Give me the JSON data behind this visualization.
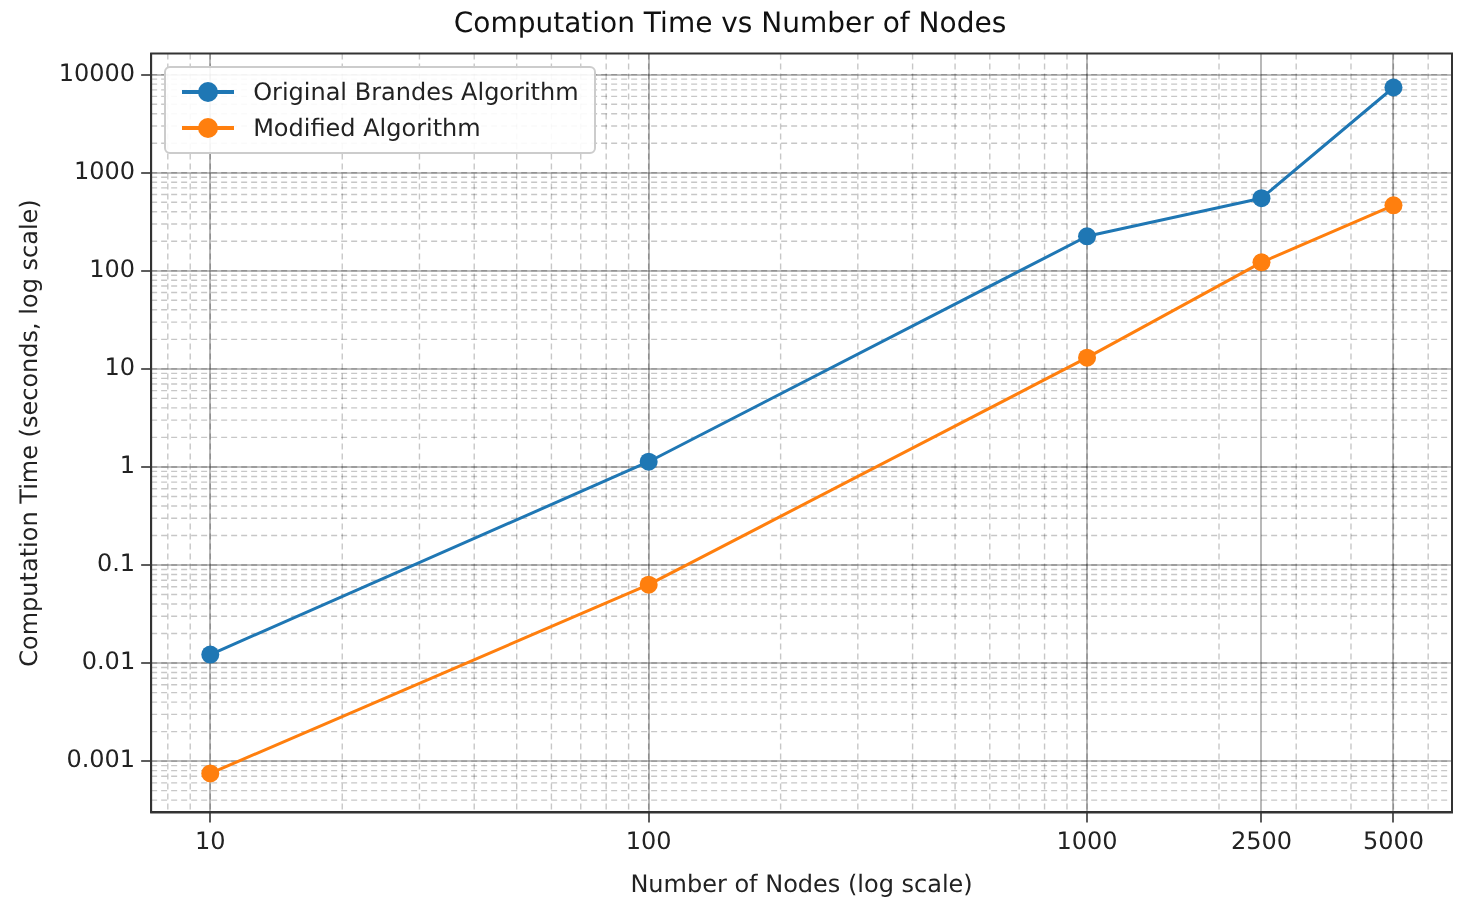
{
  "chart_data": {
    "type": "line",
    "title": "Computation Time vs Number of Nodes",
    "xlabel": "Number of Nodes (log scale)",
    "ylabel": "Computation Time (seconds, log scale)",
    "x": [
      10,
      100,
      1000,
      2500,
      5000
    ],
    "series": [
      {
        "name": "Original Brandes Algorithm",
        "color": "#1f77b4",
        "values": [
          0.0122,
          1.13,
          225,
          550,
          7400
        ]
      },
      {
        "name": "Modified Algorithm",
        "color": "#ff7f0e",
        "values": [
          0.00075,
          0.063,
          13,
          122,
          465
        ]
      }
    ],
    "log": "xy",
    "xlim": [
      7.33,
      6800
    ],
    "ylim": [
      0.00034,
      16400
    ],
    "xticks": [
      10,
      100,
      1000,
      2500,
      5000
    ],
    "yticks": [
      0.001,
      0.01,
      0.1,
      1,
      10,
      100,
      1000,
      10000
    ],
    "grid": true,
    "legend": "top left",
    "marker": "circle",
    "line_style": "solid"
  }
}
